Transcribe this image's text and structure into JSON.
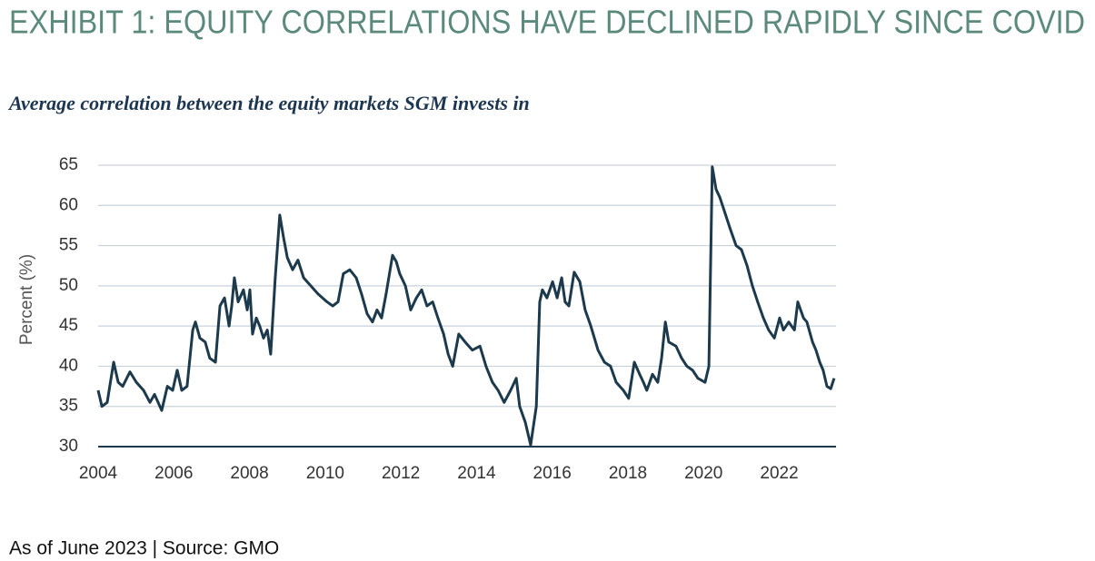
{
  "title": "EXHIBIT 1: EQUITY CORRELATIONS HAVE DECLINED RAPIDLY SINCE COVID",
  "subtitle": "Average correlation between the equity markets SGM invests in",
  "footer": "As of June 2023 | Source: GMO",
  "chart_data": {
    "type": "line",
    "y_label": "Percent (%)",
    "color": "#1c3a4c",
    "grid": true,
    "xlim": [
      2004,
      2023.5
    ],
    "xticks": [
      2004,
      2006,
      2008,
      2010,
      2012,
      2014,
      2016,
      2018,
      2020,
      2022
    ],
    "ylim": [
      30,
      65
    ],
    "yticks": [
      30,
      35,
      40,
      45,
      50,
      55,
      60,
      65
    ],
    "x": [
      2004.0,
      2004.1,
      2004.24,
      2004.29,
      2004.41,
      2004.53,
      2004.65,
      2004.84,
      2005.01,
      2005.2,
      2005.37,
      2005.49,
      2005.68,
      2005.83,
      2005.97,
      2006.09,
      2006.21,
      2006.35,
      2006.5,
      2006.57,
      2006.69,
      2006.83,
      2006.95,
      2007.1,
      2007.22,
      2007.34,
      2007.46,
      2007.53,
      2007.6,
      2007.7,
      2007.84,
      2007.94,
      2008.01,
      2008.08,
      2008.18,
      2008.27,
      2008.37,
      2008.47,
      2008.56,
      2008.68,
      2008.8,
      2008.9,
      2009.0,
      2009.14,
      2009.28,
      2009.43,
      2009.62,
      2009.81,
      2010.05,
      2010.2,
      2010.34,
      2010.48,
      2010.65,
      2010.82,
      2010.96,
      2011.11,
      2011.25,
      2011.37,
      2011.49,
      2011.61,
      2011.78,
      2011.88,
      2011.97,
      2012.12,
      2012.26,
      2012.41,
      2012.55,
      2012.69,
      2012.84,
      2012.98,
      2013.13,
      2013.25,
      2013.37,
      2013.53,
      2013.7,
      2013.89,
      2014.09,
      2014.25,
      2014.42,
      2014.57,
      2014.73,
      2014.9,
      2015.05,
      2015.14,
      2015.29,
      2015.43,
      2015.58,
      2015.67,
      2015.74,
      2015.86,
      2016.01,
      2016.13,
      2016.25,
      2016.34,
      2016.44,
      2016.58,
      2016.73,
      2016.87,
      2017.02,
      2017.21,
      2017.38,
      2017.54,
      2017.69,
      2017.88,
      2018.02,
      2018.17,
      2018.31,
      2018.41,
      2018.5,
      2018.65,
      2018.79,
      2018.89,
      2018.99,
      2019.08,
      2019.27,
      2019.42,
      2019.56,
      2019.71,
      2019.85,
      2020.04,
      2020.14,
      2020.23,
      2020.33,
      2020.43,
      2020.57,
      2020.71,
      2020.86,
      2021.0,
      2021.15,
      2021.29,
      2021.43,
      2021.58,
      2021.72,
      2021.87,
      2022.01,
      2022.11,
      2022.25,
      2022.4,
      2022.49,
      2022.64,
      2022.73,
      2022.88,
      2022.97,
      2023.07,
      2023.16,
      2023.26,
      2023.36,
      2023.45
    ],
    "values": [
      37,
      35,
      35.5,
      37,
      40.5,
      38,
      37.5,
      39.3,
      38,
      37,
      35.5,
      36.5,
      34.5,
      37.5,
      37,
      39.5,
      37,
      37.5,
      44.5,
      45.5,
      43.5,
      43,
      41,
      40.5,
      47.5,
      48.5,
      45,
      47.5,
      51,
      48,
      49.5,
      47,
      49.5,
      44,
      46,
      45,
      43.5,
      44.5,
      41.5,
      51,
      58.8,
      56,
      53.5,
      52,
      53.2,
      51,
      50,
      49,
      48,
      47.5,
      48,
      51.5,
      52,
      51,
      49,
      46.5,
      45.5,
      47,
      46,
      49,
      53.8,
      53,
      51.5,
      50,
      47,
      48.5,
      49.5,
      47.5,
      48,
      46,
      44,
      41.5,
      40,
      44,
      43,
      42,
      42.5,
      40,
      38,
      37,
      35.5,
      37,
      38.5,
      35,
      33,
      30.2,
      35,
      48,
      49.5,
      48.5,
      50.5,
      48.5,
      51,
      48,
      47.5,
      51.7,
      50.5,
      47,
      45,
      42,
      40.5,
      40,
      38,
      37,
      36,
      40.5,
      39,
      38,
      37,
      39,
      38,
      41,
      45.5,
      43,
      42.5,
      41,
      40,
      39.5,
      38.5,
      38,
      40,
      64.8,
      62,
      61,
      59,
      57,
      55,
      54.5,
      52.5,
      50,
      48,
      46,
      44.5,
      43.5,
      46,
      44.5,
      45.5,
      44.5,
      48,
      46,
      45.5,
      43,
      42,
      40.5,
      39.5,
      37.5,
      37.2,
      38.5
    ]
  }
}
